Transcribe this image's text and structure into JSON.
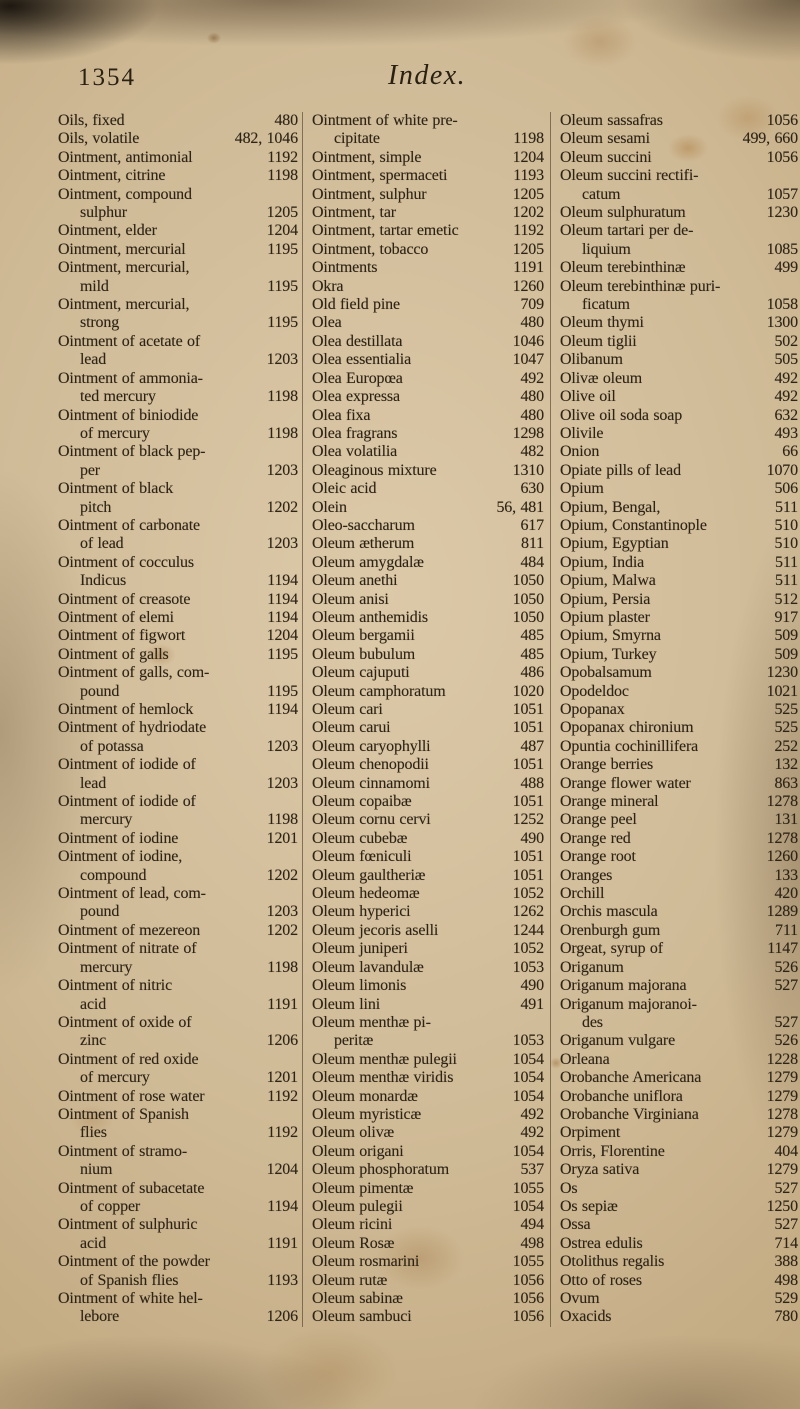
{
  "page": {
    "number": "1354",
    "title": "Index."
  },
  "index": {
    "columns": [
      {
        "entries": [
          {
            "term": "Oils, fixed",
            "page": "480"
          },
          {
            "term": "Oils, volatile",
            "page": "482, 1046"
          },
          {
            "term": "Ointment, antimonial",
            "page": "1192"
          },
          {
            "term": "Ointment, citrine",
            "page": "1198"
          },
          {
            "term": "Ointment, compound\nsulphur",
            "page": "1205"
          },
          {
            "term": "Ointment, elder",
            "page": "1204"
          },
          {
            "term": "Ointment, mercurial",
            "page": "1195"
          },
          {
            "term": "Ointment, mercurial,\nmild",
            "page": "1195"
          },
          {
            "term": "Ointment, mercurial,\nstrong",
            "page": "1195"
          },
          {
            "term": "Ointment of acetate of\nlead",
            "page": "1203"
          },
          {
            "term": "Ointment of ammonia-\nted mercury",
            "page": "1198"
          },
          {
            "term": "Ointment of biniodide\nof mercury",
            "page": "1198"
          },
          {
            "term": "Ointment of black pep-\nper",
            "page": "1203"
          },
          {
            "term": "Ointment of black\npitch",
            "page": "1202"
          },
          {
            "term": "Ointment of carbonate\nof lead",
            "page": "1203"
          },
          {
            "term": "Ointment of cocculus\nIndicus",
            "page": "1194"
          },
          {
            "term": "Ointment of creasote",
            "page": "1194"
          },
          {
            "term": "Ointment of elemi",
            "page": "1194"
          },
          {
            "term": "Ointment of figwort",
            "page": "1204"
          },
          {
            "term": "Ointment of galls",
            "page": "1195"
          },
          {
            "term": "Ointment of galls, com-\npound",
            "page": "1195"
          },
          {
            "term": "Ointment of hemlock",
            "page": "1194"
          },
          {
            "term": "Ointment of hydriodate\nof potassa",
            "page": "1203"
          },
          {
            "term": "Ointment of iodide of\nlead",
            "page": "1203"
          },
          {
            "term": "Ointment of iodide of\nmercury",
            "page": "1198"
          },
          {
            "term": "Ointment of iodine",
            "page": "1201"
          },
          {
            "term": "Ointment of iodine,\ncompound",
            "page": "1202"
          },
          {
            "term": "Ointment of lead, com-\npound",
            "page": "1203"
          },
          {
            "term": "Ointment of mezereon",
            "page": "1202"
          },
          {
            "term": "Ointment of nitrate of\nmercury",
            "page": "1198"
          },
          {
            "term": "Ointment of nitric\nacid",
            "page": "1191"
          },
          {
            "term": "Ointment of oxide of\nzinc",
            "page": "1206"
          },
          {
            "term": "Ointment of red oxide\nof mercury",
            "page": "1201"
          },
          {
            "term": "Ointment of rose water",
            "page": "1192"
          },
          {
            "term": "Ointment of Spanish\nflies",
            "page": "1192"
          },
          {
            "term": "Ointment of stramo-\nnium",
            "page": "1204"
          },
          {
            "term": "Ointment of subacetate\nof copper",
            "page": "1194"
          },
          {
            "term": "Ointment of sulphuric\nacid",
            "page": "1191"
          },
          {
            "term": "Ointment of the powder\nof Spanish flies",
            "page": "1193"
          },
          {
            "term": "Ointment of white hel-\nlebore",
            "page": "1206"
          }
        ]
      },
      {
        "entries": [
          {
            "term": "Ointment of white pre-\ncipitate",
            "page": "1198"
          },
          {
            "term": "Ointment, simple",
            "page": "1204"
          },
          {
            "term": "Ointment, spermaceti",
            "page": "1193"
          },
          {
            "term": "Ointment, sulphur",
            "page": "1205"
          },
          {
            "term": "Ointment, tar",
            "page": "1202"
          },
          {
            "term": "Ointment, tartar emetic",
            "page": "1192"
          },
          {
            "term": "Ointment, tobacco",
            "page": "1205"
          },
          {
            "term": "Ointments",
            "page": "1191"
          },
          {
            "term": "Okra",
            "page": "1260"
          },
          {
            "term": "Old field pine",
            "page": "709"
          },
          {
            "term": "Olea",
            "page": "480"
          },
          {
            "term": "Olea destillata",
            "page": "1046"
          },
          {
            "term": "Olea essentialia",
            "page": "1047"
          },
          {
            "term": "Olea Europœa",
            "page": "492"
          },
          {
            "term": "Olea expressa",
            "page": "480"
          },
          {
            "term": "Olea fixa",
            "page": "480"
          },
          {
            "term": "Olea fragrans",
            "page": "1298"
          },
          {
            "term": "Olea volatilia",
            "page": "482"
          },
          {
            "term": "Oleaginous mixture",
            "page": "1310"
          },
          {
            "term": "Oleic acid",
            "page": "630"
          },
          {
            "term": "Olein",
            "page": "56, 481"
          },
          {
            "term": "Oleo-saccharum",
            "page": "617"
          },
          {
            "term": "Oleum ætherum",
            "page": "811"
          },
          {
            "term": "Oleum amygdalæ",
            "page": "484"
          },
          {
            "term": "Oleum anethi",
            "page": "1050"
          },
          {
            "term": "Oleum anisi",
            "page": "1050"
          },
          {
            "term": "Oleum anthemidis",
            "page": "1050"
          },
          {
            "term": "Oleum bergamii",
            "page": "485"
          },
          {
            "term": "Oleum bubulum",
            "page": "485"
          },
          {
            "term": "Oleum cajuputi",
            "page": "486"
          },
          {
            "term": "Oleum camphoratum",
            "page": "1020"
          },
          {
            "term": "Oleum cari",
            "page": "1051"
          },
          {
            "term": "Oleum carui",
            "page": "1051"
          },
          {
            "term": "Oleum caryophylli",
            "page": "487"
          },
          {
            "term": "Oleum chenopodii",
            "page": "1051"
          },
          {
            "term": "Oleum cinnamomi",
            "page": "488"
          },
          {
            "term": "Oleum copaibæ",
            "page": "1051"
          },
          {
            "term": "Oleum cornu cervi",
            "page": "1252"
          },
          {
            "term": "Oleum cubebæ",
            "page": "490"
          },
          {
            "term": "Oleum fœniculi",
            "page": "1051"
          },
          {
            "term": "Oleum gaultheriæ",
            "page": "1051"
          },
          {
            "term": "Oleum hedeomæ",
            "page": "1052"
          },
          {
            "term": "Oleum hyperici",
            "page": "1262"
          },
          {
            "term": "Oleum jecoris aselli",
            "page": "1244"
          },
          {
            "term": "Oleum juniperi",
            "page": "1052"
          },
          {
            "term": "Oleum lavandulæ",
            "page": "1053"
          },
          {
            "term": "Oleum limonis",
            "page": "490"
          },
          {
            "term": "Oleum lini",
            "page": "491"
          },
          {
            "term": "Oleum menthæ pi-\nperitæ",
            "page": "1053"
          },
          {
            "term": "Oleum menthæ pulegii",
            "page": "1054"
          },
          {
            "term": "Oleum menthæ viridis",
            "page": "1054"
          },
          {
            "term": "Oleum monardæ",
            "page": "1054"
          },
          {
            "term": "Oleum myristicæ",
            "page": "492"
          },
          {
            "term": "Oleum olivæ",
            "page": "492"
          },
          {
            "term": "Oleum origani",
            "page": "1054"
          },
          {
            "term": "Oleum phosphoratum",
            "page": "537"
          },
          {
            "term": "Oleum pimentæ",
            "page": "1055"
          },
          {
            "term": "Oleum pulegii",
            "page": "1054"
          },
          {
            "term": "Oleum ricini",
            "page": "494"
          },
          {
            "term": "Oleum Rosæ",
            "page": "498"
          },
          {
            "term": "Oleum rosmarini",
            "page": "1055"
          },
          {
            "term": "Oleum rutæ",
            "page": "1056"
          },
          {
            "term": "Oleum sabinæ",
            "page": "1056"
          },
          {
            "term": "Oleum sambuci",
            "page": "1056"
          }
        ]
      },
      {
        "entries": [
          {
            "term": "Oleum sassafras",
            "page": "1056"
          },
          {
            "term": "Oleum sesami",
            "page": "499, 660"
          },
          {
            "term": "Oleum succini",
            "page": "1056"
          },
          {
            "term": "Oleum succini rectifi-\ncatum",
            "page": "1057"
          },
          {
            "term": "Oleum sulphuratum",
            "page": "1230"
          },
          {
            "term": "Oleum tartari per de-\nliquium",
            "page": "1085"
          },
          {
            "term": "Oleum terebinthinæ",
            "page": "499"
          },
          {
            "term": "Oleum terebinthinæ puri-\nficatum",
            "page": "1058"
          },
          {
            "term": "Oleum thymi",
            "page": "1300"
          },
          {
            "term": "Oleum tiglii",
            "page": "502"
          },
          {
            "term": "Olibanum",
            "page": "505"
          },
          {
            "term": "Olivæ oleum",
            "page": "492"
          },
          {
            "term": "Olive oil",
            "page": "492"
          },
          {
            "term": "Olive oil soda soap",
            "page": "632"
          },
          {
            "term": "Olivile",
            "page": "493"
          },
          {
            "term": "Onion",
            "page": "66"
          },
          {
            "term": "Opiate pills of lead",
            "page": "1070"
          },
          {
            "term": "Opium",
            "page": "506"
          },
          {
            "term": "Opium, Bengal,",
            "page": "511"
          },
          {
            "term": "Opium, Constantinople",
            "page": "510"
          },
          {
            "term": "Opium, Egyptian",
            "page": "510"
          },
          {
            "term": "Opium, India",
            "page": "511"
          },
          {
            "term": "Opium, Malwa",
            "page": "511"
          },
          {
            "term": "Opium, Persia",
            "page": "512"
          },
          {
            "term": "Opium plaster",
            "page": "917"
          },
          {
            "term": "Opium, Smyrna",
            "page": "509"
          },
          {
            "term": "Opium, Turkey",
            "page": "509"
          },
          {
            "term": "Opobalsamum",
            "page": "1230"
          },
          {
            "term": "Opodeldoc",
            "page": "1021"
          },
          {
            "term": "Opopanax",
            "page": "525"
          },
          {
            "term": "Opopanax chironium",
            "page": "525"
          },
          {
            "term": "Opuntia cochinillifera",
            "page": "252"
          },
          {
            "term": "Orange berries",
            "page": "132"
          },
          {
            "term": "Orange flower water",
            "page": "863"
          },
          {
            "term": "Orange mineral",
            "page": "1278"
          },
          {
            "term": "Orange peel",
            "page": "131"
          },
          {
            "term": "Orange red",
            "page": "1278"
          },
          {
            "term": "Orange root",
            "page": "1260"
          },
          {
            "term": "Oranges",
            "page": "133"
          },
          {
            "term": "Orchill",
            "page": "420"
          },
          {
            "term": "Orchis mascula",
            "page": "1289"
          },
          {
            "term": "Orenburgh gum",
            "page": "711"
          },
          {
            "term": "Orgeat, syrup of",
            "page": "1147"
          },
          {
            "term": "Origanum",
            "page": "526"
          },
          {
            "term": "Origanum majorana",
            "page": "527"
          },
          {
            "term": "Origanum majoranoi-\ndes",
            "page": "527"
          },
          {
            "term": "Origanum vulgare",
            "page": "526"
          },
          {
            "term": "Orleana",
            "page": "1228"
          },
          {
            "term": "Orobanche Americana",
            "page": "1279"
          },
          {
            "term": "Orobanche uniflora",
            "page": "1279"
          },
          {
            "term": "Orobanche Virginiana",
            "page": "1278"
          },
          {
            "term": "Orpiment",
            "page": "1279"
          },
          {
            "term": "Orris, Florentine",
            "page": "404"
          },
          {
            "term": "Oryza sativa",
            "page": "1279"
          },
          {
            "term": "Os",
            "page": "527"
          },
          {
            "term": "Os sepiæ",
            "page": "1250"
          },
          {
            "term": "Ossa",
            "page": "527"
          },
          {
            "term": "Ostrea edulis",
            "page": "714"
          },
          {
            "term": "Otolithus regalis",
            "page": "388"
          },
          {
            "term": "Otto of roses",
            "page": "498"
          },
          {
            "term": "Ovum",
            "page": "529"
          },
          {
            "term": "Oxacids",
            "page": "780"
          }
        ]
      }
    ]
  }
}
